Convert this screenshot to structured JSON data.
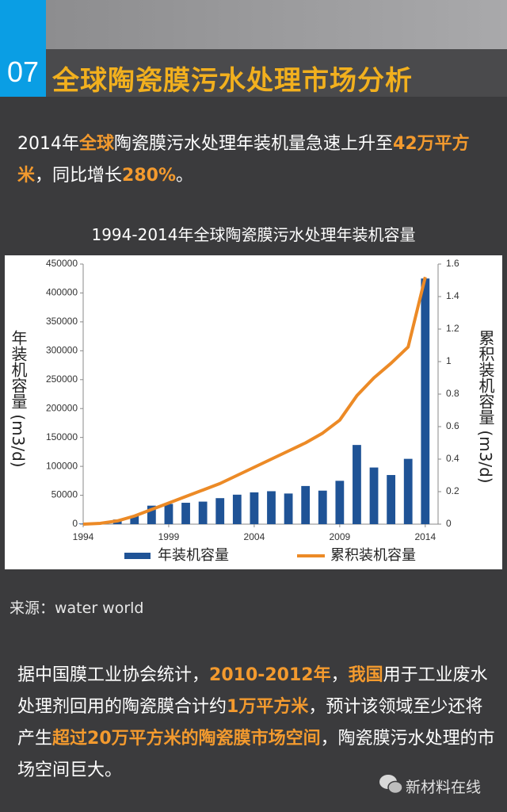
{
  "header": {
    "number": "07",
    "title": "全球陶瓷膜污水处理市场分析"
  },
  "emphasis_color": "#f39a2e",
  "intro": [
    {
      "text": "2014年"
    },
    {
      "text": "全球",
      "emphasis": true
    },
    {
      "text": "陶瓷膜污水处理年装机量急速上升至"
    },
    {
      "text": "42万平方米",
      "emphasis": true
    },
    {
      "text": "，同比增长"
    },
    {
      "text": "280%",
      "emphasis": true
    },
    {
      "text": "。"
    }
  ],
  "chart_data": {
    "type": "bar",
    "title": "1994-2014年全球陶瓷膜污水处理年装机容量",
    "y_label": "年装机容量 (m3/d)",
    "y2_label": "累积装机容量 (m3/d)",
    "x": [
      1994,
      1995,
      1996,
      1997,
      1998,
      1999,
      2000,
      2001,
      2002,
      2003,
      2004,
      2005,
      2006,
      2007,
      2008,
      2009,
      2010,
      2011,
      2012,
      2013,
      2014
    ],
    "series": [
      {
        "name": "年装机容量",
        "type": "bar",
        "color": "#1f5396",
        "values": [
          1000,
          3000,
          8000,
          14000,
          32000,
          35000,
          37000,
          39000,
          45000,
          51000,
          55000,
          57000,
          53000,
          66000,
          58000,
          75000,
          137000,
          98000,
          85000,
          113000,
          425000
        ]
      },
      {
        "name": "累积装机容量",
        "type": "line",
        "axis": "y2",
        "color": "#ec8a26",
        "values": [
          0,
          0.005,
          0.02,
          0.05,
          0.09,
          0.13,
          0.17,
          0.21,
          0.25,
          0.3,
          0.35,
          0.4,
          0.45,
          0.5,
          0.56,
          0.64,
          0.79,
          0.9,
          0.99,
          1.09,
          1.52
        ]
      }
    ],
    "xlim": [
      1994,
      2014.75
    ],
    "xticks": [
      1994,
      1999,
      2004,
      2009,
      2014
    ],
    "ylim": [
      0,
      450000
    ],
    "yticks": [
      0,
      50000,
      100000,
      150000,
      200000,
      250000,
      300000,
      350000,
      400000,
      450000
    ],
    "y2lim": [
      0,
      1.6
    ],
    "y2ticks": [
      0,
      0.2,
      0.4,
      0.6,
      0.8,
      1,
      1.2,
      1.4,
      1.6
    ],
    "legend": "bottom"
  },
  "source": "来源：water world",
  "body": [
    {
      "text": "据中国膜工业协会统计，"
    },
    {
      "text": "2010-2012年",
      "emphasis": true
    },
    {
      "text": "，"
    },
    {
      "text": "我国",
      "emphasis": true
    },
    {
      "text": "用于工业废水处理剂回用的陶瓷膜合计约"
    },
    {
      "text": "1万平方米",
      "emphasis": true
    },
    {
      "text": "，预计该领域至少还将产生"
    },
    {
      "text": "超过20万平方米的陶瓷膜市场空间",
      "emphasis": true
    },
    {
      "text": "，陶瓷膜污水处理的市场空间巨大。"
    }
  ],
  "footer": {
    "brand": "新材料在线"
  }
}
